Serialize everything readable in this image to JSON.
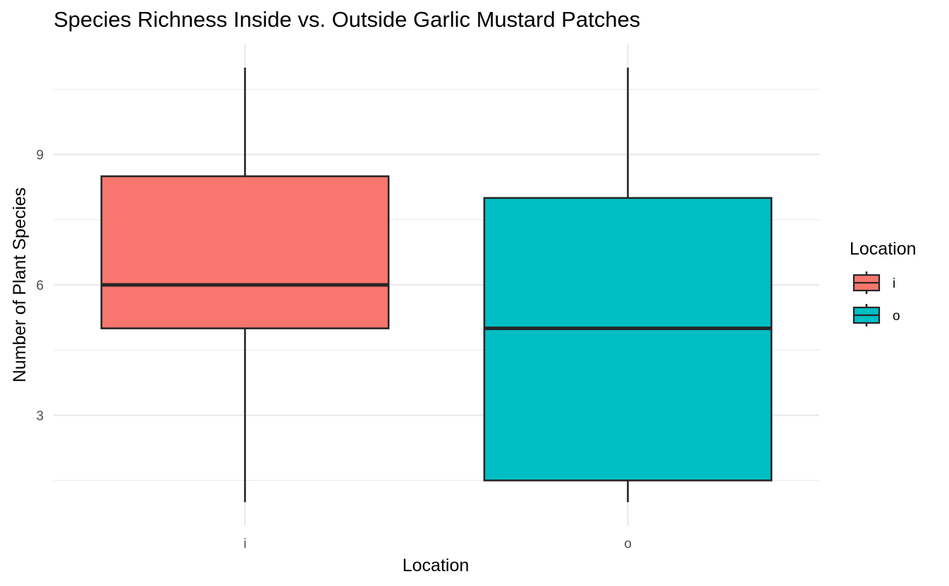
{
  "chart_data": {
    "type": "boxplot",
    "title": "Species Richness Inside vs. Outside Garlic Mustard Patches",
    "xlabel": "Location",
    "ylabel": "Number of Plant Species",
    "categories": [
      "i",
      "o"
    ],
    "boxes": [
      {
        "category": "i",
        "min": 1,
        "q1": 5,
        "median": 6,
        "q3": 8.5,
        "max": 11,
        "color": "#F8766D"
      },
      {
        "category": "o",
        "min": 1,
        "q1": 1.5,
        "median": 5,
        "q3": 8,
        "max": 11,
        "color": "#00BFC4"
      }
    ],
    "yticks": [
      3,
      6,
      9
    ],
    "yminor": [
      1.5,
      4.5,
      7.5,
      10.5
    ],
    "ylim": [
      0.45,
      11.55
    ],
    "grid": true,
    "legend": {
      "title": "Location",
      "position": "right",
      "entries": [
        {
          "label": "i",
          "color": "#F8766D"
        },
        {
          "label": "o",
          "color": "#00BFC4"
        }
      ]
    }
  }
}
